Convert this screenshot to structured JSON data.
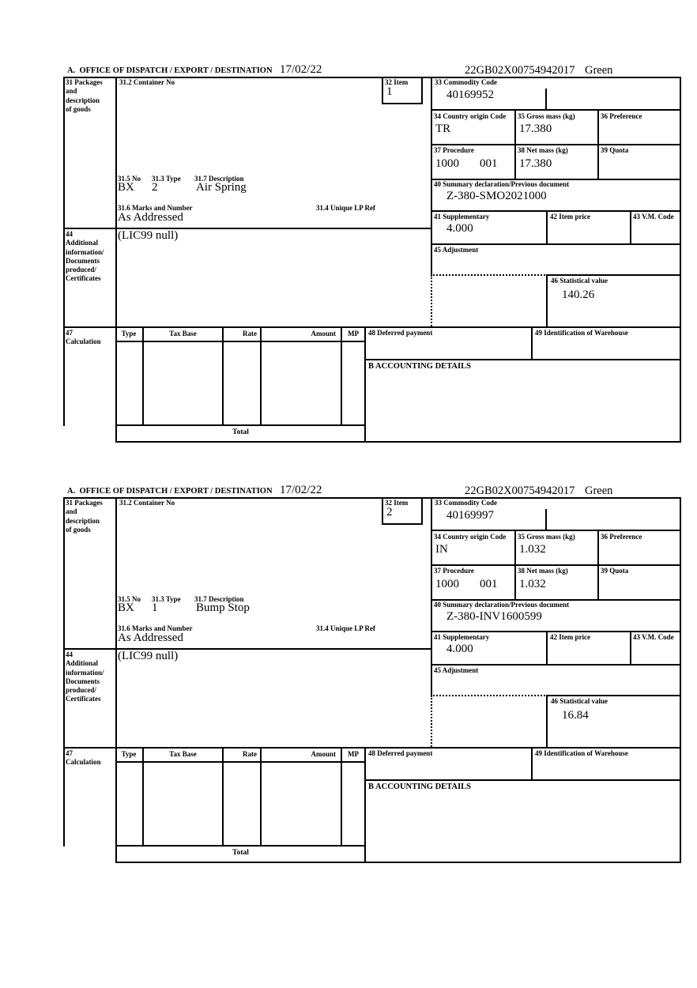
{
  "forms": [
    {
      "header": {
        "office_label": "A.  OFFICE OF DISPATCH / EXPORT / DESTINATION",
        "date": "17/02/22",
        "entry_number": "22GB02X00754942017",
        "route": "Green"
      },
      "packages_label": "31 Packages\nand\ndescription\nof goods",
      "container_label": "31.2 Container No",
      "item_label": "32 Item",
      "item_number": "1",
      "commodity_label": "33 Commodity Code",
      "commodity_code": "40169952",
      "country_label": "34 Country origin Code",
      "country_code": "TR",
      "gross_label": "35 Gross mass (kg)",
      "gross_mass": "17.380",
      "preference_label": "36 Preference",
      "procedure_label": "37 Procedure",
      "procedure_code": "1000",
      "procedure_qualifier": "001",
      "net_label": "38 Net mass (kg)",
      "net_mass": "17.380",
      "quota_label": "39 Quota",
      "summary_label": "40 Summary declaration/Previous document",
      "summary_document": "Z-380-SMO2021000",
      "supplementary_label": "41 Supplementary",
      "supplementary_units": "4.000",
      "item_price_label": "42 Item price",
      "vm_code_label": "43 V.M. Code",
      "package_no_label": "31.5 No",
      "package_no": "BX",
      "package_type_label": "31.3 Type",
      "package_type": "2",
      "description_label": "31.7 Description",
      "description": "Air Spring",
      "marks_label": "31.6 Marks and Number",
      "marks": "As Addressed",
      "lp_ref_label": "31.4 Unique LP Ref",
      "additional_label": "44\nAdditional\ninformation/\nDocuments\nproduced/\nCertificates",
      "additional_info": "(LIC99 null)",
      "adjustment_label": "45 Adjustment",
      "statistical_label": "46 Statistical value",
      "statistical_value": "140.26",
      "calculation_label": "47\nCalculation",
      "calc_headers": {
        "type": "Type",
        "tax_base": "Tax Base",
        "rate": "Rate",
        "amount": "Amount",
        "mp": "MP"
      },
      "total_label": "Total",
      "deferred_label": "48 Deferred payment",
      "warehouse_label": "49 Identification of Warehouse",
      "accounting_label": "B ACCOUNTING DETAILS"
    },
    {
      "header": {
        "office_label": "A.  OFFICE OF DISPATCH / EXPORT / DESTINATION",
        "date": "17/02/22",
        "entry_number": "22GB02X00754942017",
        "route": "Green"
      },
      "packages_label": "31 Packages\nand\ndescription\nof goods",
      "container_label": "31.2 Container No",
      "item_label": "32 Item",
      "item_number": "2",
      "commodity_label": "33 Commodity Code",
      "commodity_code": "40169997",
      "country_label": "34 Country origin Code",
      "country_code": "IN",
      "gross_label": "35 Gross mass (kg)",
      "gross_mass": "1.032",
      "preference_label": "36 Preference",
      "procedure_label": "37 Procedure",
      "procedure_code": "1000",
      "procedure_qualifier": "001",
      "net_label": "38 Net mass (kg)",
      "net_mass": "1.032",
      "quota_label": "39 Quota",
      "summary_label": "40 Summary declaration/Previous document",
      "summary_document": "Z-380-INV1600599",
      "supplementary_label": "41 Supplementary",
      "supplementary_units": "4.000",
      "item_price_label": "42 Item price",
      "vm_code_label": "43 V.M. Code",
      "package_no_label": "31.5 No",
      "package_no": "BX",
      "package_type_label": "31.3 Type",
      "package_type": "1",
      "description_label": "31.7 Description",
      "description": "Bump Stop",
      "marks_label": "31.6 Marks and Number",
      "marks": "As Addressed",
      "lp_ref_label": "31.4 Unique LP Ref",
      "additional_label": "44\nAdditional\ninformation/\nDocuments\nproduced/\nCertificates",
      "additional_info": "(LIC99 null)",
      "adjustment_label": "45 Adjustment",
      "statistical_label": "46 Statistical value",
      "statistical_value": "16.84",
      "calculation_label": "47\nCalculation",
      "calc_headers": {
        "type": "Type",
        "tax_base": "Tax Base",
        "rate": "Rate",
        "amount": "Amount",
        "mp": "MP"
      },
      "total_label": "Total",
      "deferred_label": "48 Deferred payment",
      "warehouse_label": "49 Identification of Warehouse",
      "accounting_label": "B ACCOUNTING DETAILS"
    }
  ]
}
